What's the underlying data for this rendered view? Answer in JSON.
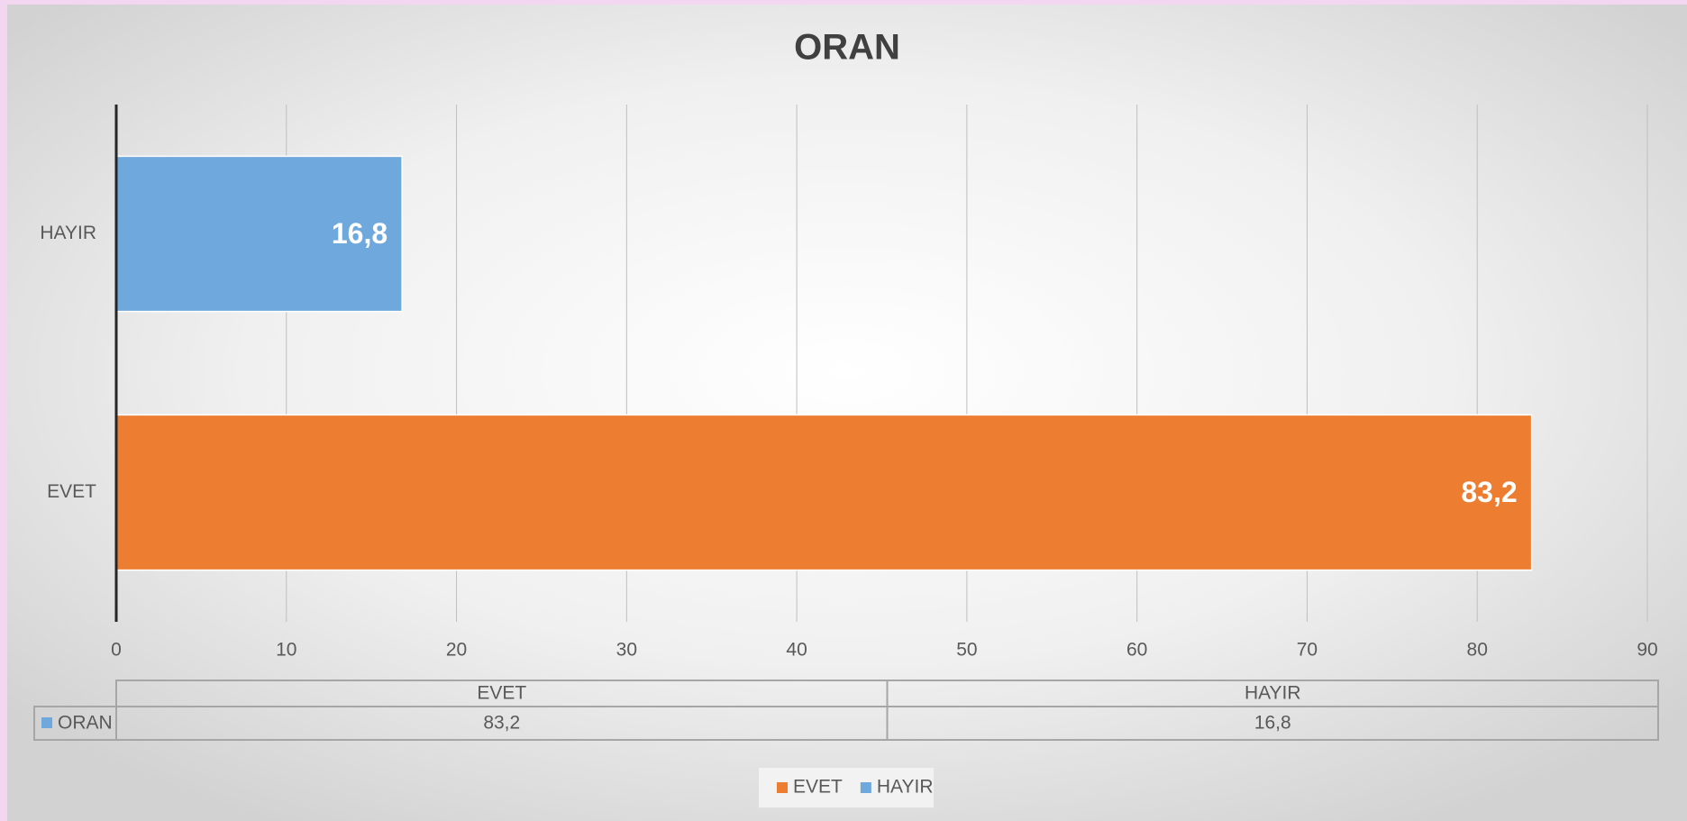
{
  "chart_data": {
    "type": "bar",
    "orientation": "horizontal",
    "title": "ORAN",
    "categories": [
      "EVET",
      "HAYIR"
    ],
    "series": [
      {
        "name": "ORAN",
        "colors": [
          "#ed7d31",
          "#6fa8dc"
        ],
        "values": [
          83.2,
          16.8
        ],
        "value_labels": [
          "83,2",
          "16,8"
        ]
      }
    ],
    "xlim": [
      0,
      90
    ],
    "xticks": [
      0,
      10,
      20,
      30,
      40,
      50,
      60,
      70,
      80,
      90
    ],
    "grid": true,
    "legend": "bottom",
    "data_table": true
  }
}
